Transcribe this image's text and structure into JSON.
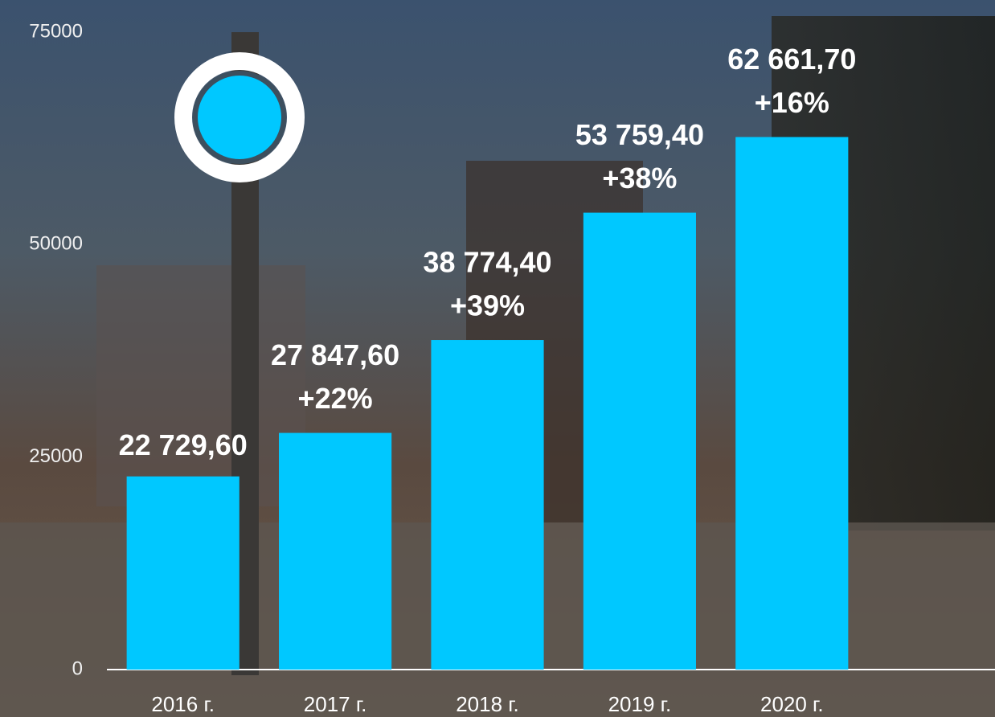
{
  "chart_data": {
    "type": "bar",
    "categories": [
      "2016 г.",
      "2017 г.",
      "2018 г.",
      "2019 г.",
      "2020 г."
    ],
    "values": [
      22729.6,
      27847.6,
      38774.4,
      53759.4,
      62661.7
    ],
    "value_labels": [
      "22 729,60",
      "27 847,60",
      "38 774,40",
      "53 759,40",
      "62 661,70"
    ],
    "growth_labels": [
      null,
      "+22%",
      "+39%",
      "+38%",
      "+16%"
    ],
    "color": "#00c8ff",
    "ylim": [
      0,
      75000
    ],
    "yticks": [
      0,
      25000,
      50000,
      75000
    ],
    "grid": false
  }
}
